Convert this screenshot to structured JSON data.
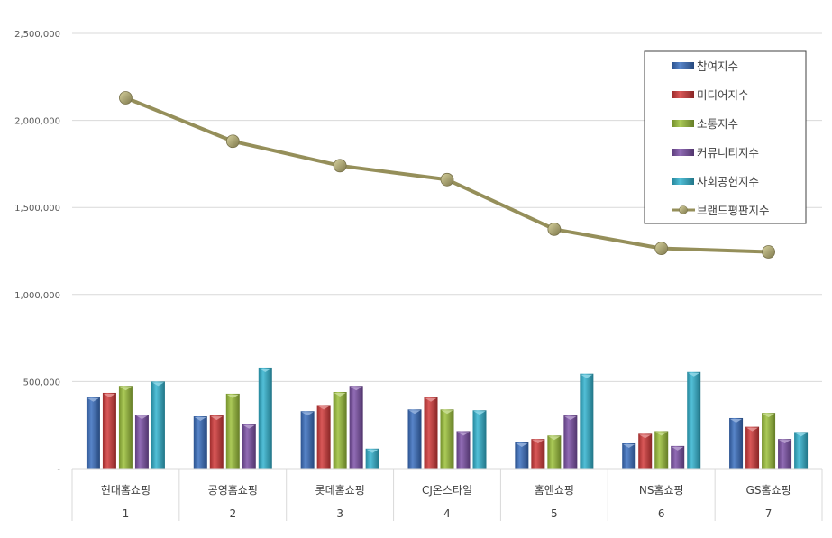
{
  "chart_data": {
    "type": "bar+line",
    "title": "",
    "xlabel": "",
    "ylabel": "",
    "ylim": [
      0,
      2500000
    ],
    "yticks": [
      0,
      500000,
      1000000,
      1500000,
      2000000,
      2500000
    ],
    "ytick_labels": [
      "-",
      "500,000",
      "1,000,000",
      "1,500,000",
      "2,000,000",
      "2,500,000"
    ],
    "grid": true,
    "legend_position": "top-right",
    "categories": [
      "현대홈쇼핑",
      "공영홈쇼핑",
      "롯데홈쇼핑",
      "CJ온스타일",
      "홈앤쇼핑",
      "NS홈쇼핑",
      "GS홈쇼핑"
    ],
    "category_ranks": [
      "1",
      "2",
      "3",
      "4",
      "5",
      "6",
      "7"
    ],
    "series": [
      {
        "name": "참여지수",
        "type": "bar",
        "color": "#3A6FC0",
        "values": [
          410000,
          300000,
          330000,
          340000,
          150000,
          145000,
          290000
        ]
      },
      {
        "name": "미디어지수",
        "type": "bar",
        "color": "#D23A3A",
        "values": [
          435000,
          305000,
          365000,
          410000,
          170000,
          200000,
          240000
        ]
      },
      {
        "name": "소통지수",
        "type": "bar",
        "color": "#9CC13B",
        "values": [
          475000,
          430000,
          440000,
          340000,
          190000,
          215000,
          320000
        ]
      },
      {
        "name": "커뮤니티지수",
        "type": "bar",
        "color": "#7D52A8",
        "values": [
          310000,
          255000,
          475000,
          215000,
          305000,
          130000,
          170000
        ]
      },
      {
        "name": "사회공헌지수",
        "type": "bar",
        "color": "#33B4D0",
        "values": [
          500000,
          580000,
          115000,
          335000,
          545000,
          555000,
          210000
        ]
      },
      {
        "name": "브랜드평판지수",
        "type": "line",
        "color": "#958F5A",
        "values": [
          2130000,
          1880000,
          1740000,
          1660000,
          1375000,
          1265000,
          1245000
        ]
      }
    ]
  }
}
